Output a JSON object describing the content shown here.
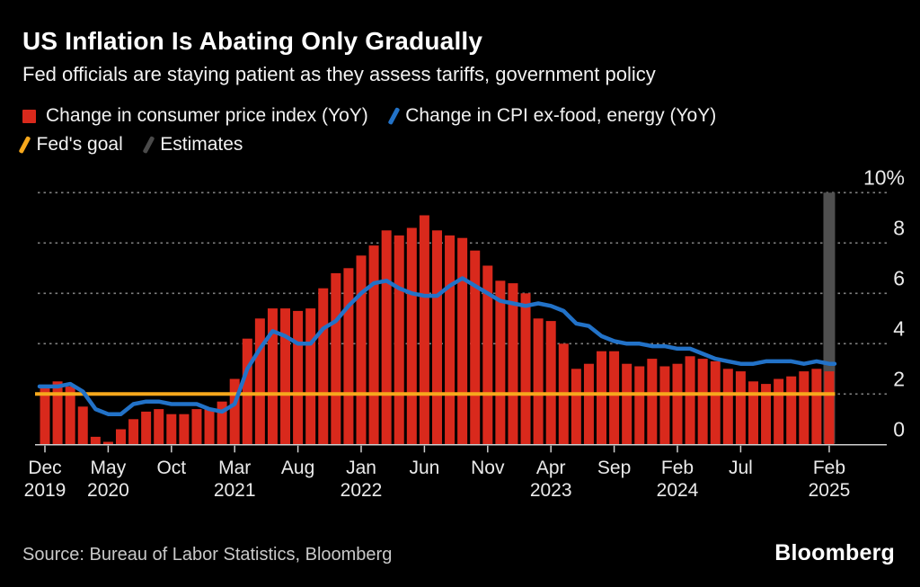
{
  "header": {
    "title": "US Inflation Is Abating Only Gradually",
    "subtitle": "Fed officials are staying patient as they assess tariffs, government policy"
  },
  "legend": {
    "items": [
      {
        "label": "Change in consumer price index (YoY)",
        "marker": "square",
        "color": "#d9291c"
      },
      {
        "label": "Change in CPI ex-food, energy (YoY)",
        "marker": "slash",
        "color": "#2272c8"
      },
      {
        "label": "Fed's goal",
        "marker": "slash",
        "color": "#f7a81c"
      },
      {
        "label": "Estimates",
        "marker": "slash",
        "color": "#4a4a4a"
      }
    ]
  },
  "footer": {
    "source": "Source: Bureau of Labor Statistics, Bloomberg",
    "logo": "Bloomberg"
  },
  "chart_data": {
    "type": "bar",
    "title": "US Inflation Is Abating Only Gradually",
    "unit": "%",
    "ylim": [
      0,
      10
    ],
    "grid": "horizontal-dashed",
    "legend_position": "top",
    "yticks": [
      {
        "value": 0,
        "label": "0"
      },
      {
        "value": 2,
        "label": "2"
      },
      {
        "value": 4,
        "label": "4"
      },
      {
        "value": 6,
        "label": "6"
      },
      {
        "value": 8,
        "label": "8"
      },
      {
        "value": 10,
        "label": "10%"
      }
    ],
    "categories": [
      "Dec 2019",
      "Jan 2020",
      "Feb 2020",
      "Mar 2020",
      "Apr 2020",
      "May 2020",
      "Jun 2020",
      "Jul 2020",
      "Aug 2020",
      "Sep 2020",
      "Oct 2020",
      "Nov 2020",
      "Dec 2020",
      "Jan 2021",
      "Feb 2021",
      "Mar 2021",
      "Apr 2021",
      "May 2021",
      "Jun 2021",
      "Jul 2021",
      "Aug 2021",
      "Sep 2021",
      "Oct 2021",
      "Nov 2021",
      "Dec 2021",
      "Jan 2022",
      "Feb 2022",
      "Mar 2022",
      "Apr 2022",
      "May 2022",
      "Jun 2022",
      "Jul 2022",
      "Aug 2022",
      "Sep 2022",
      "Oct 2022",
      "Nov 2022",
      "Dec 2022",
      "Jan 2023",
      "Feb 2023",
      "Mar 2023",
      "Apr 2023",
      "May 2023",
      "Jun 2023",
      "Jul 2023",
      "Aug 2023",
      "Sep 2023",
      "Oct 2023",
      "Nov 2023",
      "Dec 2023",
      "Jan 2024",
      "Feb 2024",
      "Mar 2024",
      "Apr 2024",
      "May 2024",
      "Jun 2024",
      "Jul 2024",
      "Aug 2024",
      "Sep 2024",
      "Oct 2024",
      "Nov 2024",
      "Dec 2024",
      "Jan 2025",
      "Feb 2025"
    ],
    "series": [
      {
        "name": "Change in consumer price index (YoY)",
        "type": "bar",
        "color": "#d9291c",
        "values": [
          2.3,
          2.5,
          2.3,
          1.5,
          0.3,
          0.1,
          0.6,
          1.0,
          1.3,
          1.4,
          1.2,
          1.2,
          1.4,
          1.4,
          1.7,
          2.6,
          4.2,
          5.0,
          5.4,
          5.4,
          5.3,
          5.4,
          6.2,
          6.8,
          7.0,
          7.5,
          7.9,
          8.5,
          8.3,
          8.6,
          9.1,
          8.5,
          8.3,
          8.2,
          7.7,
          7.1,
          6.5,
          6.4,
          6.0,
          5.0,
          4.9,
          4.0,
          3.0,
          3.2,
          3.7,
          3.7,
          3.2,
          3.1,
          3.4,
          3.1,
          3.2,
          3.5,
          3.4,
          3.3,
          3.0,
          2.9,
          2.5,
          2.4,
          2.6,
          2.7,
          2.9,
          3.0,
          2.9
        ]
      },
      {
        "name": "Change in CPI ex-food, energy (YoY)",
        "type": "line",
        "color": "#2272c8",
        "values": [
          2.3,
          2.3,
          2.4,
          2.1,
          1.4,
          1.2,
          1.2,
          1.6,
          1.7,
          1.7,
          1.6,
          1.6,
          1.6,
          1.4,
          1.3,
          1.6,
          3.0,
          3.8,
          4.5,
          4.3,
          4.0,
          4.0,
          4.6,
          4.9,
          5.5,
          6.0,
          6.4,
          6.5,
          6.2,
          6.0,
          5.9,
          5.9,
          6.3,
          6.6,
          6.3,
          6.0,
          5.7,
          5.6,
          5.5,
          5.6,
          5.5,
          5.3,
          4.8,
          4.7,
          4.3,
          4.1,
          4.0,
          4.0,
          3.9,
          3.9,
          3.8,
          3.8,
          3.6,
          3.4,
          3.3,
          3.2,
          3.2,
          3.3,
          3.3,
          3.3,
          3.2,
          3.3,
          3.2
        ]
      }
    ],
    "reference_line": {
      "name": "Fed's goal",
      "value": 2,
      "color": "#f7a81c"
    },
    "estimates_band": {
      "name": "Estimates",
      "color": "#4f4f4f",
      "start_index": 62,
      "end_index": 62,
      "months": [
        "Feb 2025"
      ]
    },
    "xticks": [
      {
        "index": 0,
        "month": "Dec",
        "year": "2019"
      },
      {
        "index": 5,
        "month": "May",
        "year": "2020"
      },
      {
        "index": 10,
        "month": "Oct",
        "year": ""
      },
      {
        "index": 15,
        "month": "Mar",
        "year": "2021"
      },
      {
        "index": 20,
        "month": "Aug",
        "year": ""
      },
      {
        "index": 25,
        "month": "Jan",
        "year": "2022"
      },
      {
        "index": 30,
        "month": "Jun",
        "year": ""
      },
      {
        "index": 35,
        "month": "Nov",
        "year": ""
      },
      {
        "index": 40,
        "month": "Apr",
        "year": "2023"
      },
      {
        "index": 45,
        "month": "Sep",
        "year": ""
      },
      {
        "index": 50,
        "month": "Feb",
        "year": "2024"
      },
      {
        "index": 55,
        "month": "Jul",
        "year": ""
      },
      {
        "index": 62,
        "month": "Feb",
        "year": "2025"
      }
    ],
    "style": {
      "background": "#000000",
      "grid_color": "#808080",
      "axis_color": "#cfcfcf",
      "tick_label_color": "#eaeaea"
    }
  }
}
